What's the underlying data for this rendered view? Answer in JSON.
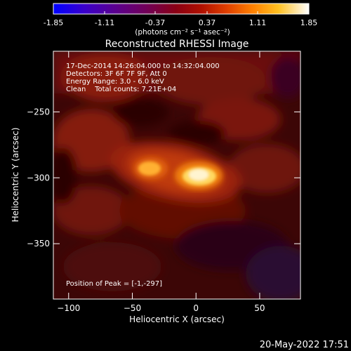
{
  "colorbar": {
    "ticks": [
      "-1.85",
      "-1.11",
      "-0.37",
      "0.37",
      "1.11",
      "1.85"
    ],
    "unit_label": "(photons cm⁻² s⁻¹ asec⁻²)"
  },
  "title": "Reconstructed RHESSI Image",
  "info_lines": [
    "17-Dec-2014 14:26:04.000 to 14:32:04.000",
    "Detectors: 3F 6F 7F 9F, Att 0",
    "Energy Range: 3.0 - 6.0 keV",
    "Clean    Total counts: 7.21E+04"
  ],
  "peak_text": "Position of Peak = [-1,-297]",
  "timestamp": "20-May-2022 17:51",
  "chart_data": {
    "type": "heatmap",
    "title": "Reconstructed RHESSI Image",
    "xlabel": "Heliocentric X (arcsec)",
    "ylabel": "Heliocentric Y (arcsec)",
    "xlim": [
      -112,
      82
    ],
    "ylim": [
      -392,
      -204
    ],
    "x_ticks": [
      -100,
      -50,
      0,
      50
    ],
    "y_ticks": [
      -350,
      -300,
      -250
    ],
    "colorbar_range": [
      -1.85,
      1.85
    ],
    "colormap": "hot",
    "sources": [
      {
        "x": -1,
        "y": -297,
        "relative_intensity": 1.0
      },
      {
        "x": -36,
        "y": -291,
        "relative_intensity": 0.85
      }
    ],
    "peak_position": [
      -1,
      -297
    ]
  }
}
